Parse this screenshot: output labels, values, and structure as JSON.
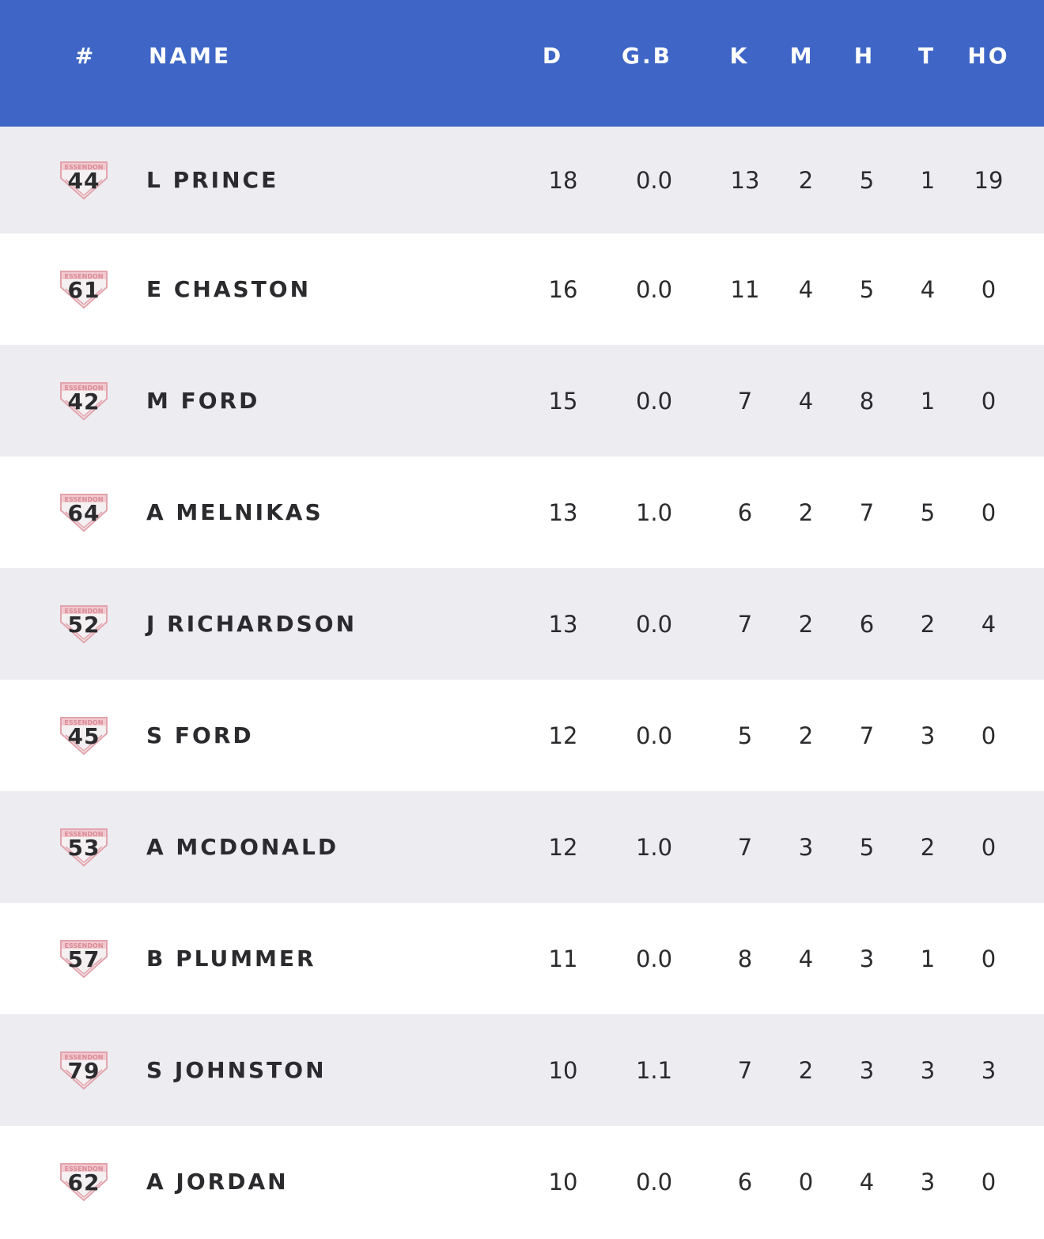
{
  "columns": {
    "number": "#",
    "name": "NAME",
    "d": "D",
    "gb": "G.B",
    "k": "K",
    "m": "M",
    "h": "H",
    "t": "T",
    "ho": "HO"
  },
  "colors": {
    "header_bg": "#3f66c6",
    "row_alt_bg": "#ececf1",
    "badge_outline": "#e8a8b0"
  },
  "players": [
    {
      "number": "44",
      "name": "L PRINCE",
      "d": "18",
      "gb": "0.0",
      "k": "13",
      "m": "2",
      "h": "5",
      "t": "1",
      "ho": "19"
    },
    {
      "number": "61",
      "name": "E CHASTON",
      "d": "16",
      "gb": "0.0",
      "k": "11",
      "m": "4",
      "h": "5",
      "t": "4",
      "ho": "0"
    },
    {
      "number": "42",
      "name": "M FORD",
      "d": "15",
      "gb": "0.0",
      "k": "7",
      "m": "4",
      "h": "8",
      "t": "1",
      "ho": "0"
    },
    {
      "number": "64",
      "name": "A MELNIKAS",
      "d": "13",
      "gb": "1.0",
      "k": "6",
      "m": "2",
      "h": "7",
      "t": "5",
      "ho": "0"
    },
    {
      "number": "52",
      "name": "J RICHARDSON",
      "d": "13",
      "gb": "0.0",
      "k": "7",
      "m": "2",
      "h": "6",
      "t": "2",
      "ho": "4"
    },
    {
      "number": "45",
      "name": "S FORD",
      "d": "12",
      "gb": "0.0",
      "k": "5",
      "m": "2",
      "h": "7",
      "t": "3",
      "ho": "0"
    },
    {
      "number": "53",
      "name": "A MCDONALD",
      "d": "12",
      "gb": "1.0",
      "k": "7",
      "m": "3",
      "h": "5",
      "t": "2",
      "ho": "0"
    },
    {
      "number": "57",
      "name": "B PLUMMER",
      "d": "11",
      "gb": "0.0",
      "k": "8",
      "m": "4",
      "h": "3",
      "t": "1",
      "ho": "0"
    },
    {
      "number": "79",
      "name": "S JOHNSTON",
      "d": "10",
      "gb": "1.1",
      "k": "7",
      "m": "2",
      "h": "3",
      "t": "3",
      "ho": "3"
    },
    {
      "number": "62",
      "name": "A JORDAN",
      "d": "10",
      "gb": "0.0",
      "k": "6",
      "m": "0",
      "h": "4",
      "t": "3",
      "ho": "0"
    }
  ]
}
